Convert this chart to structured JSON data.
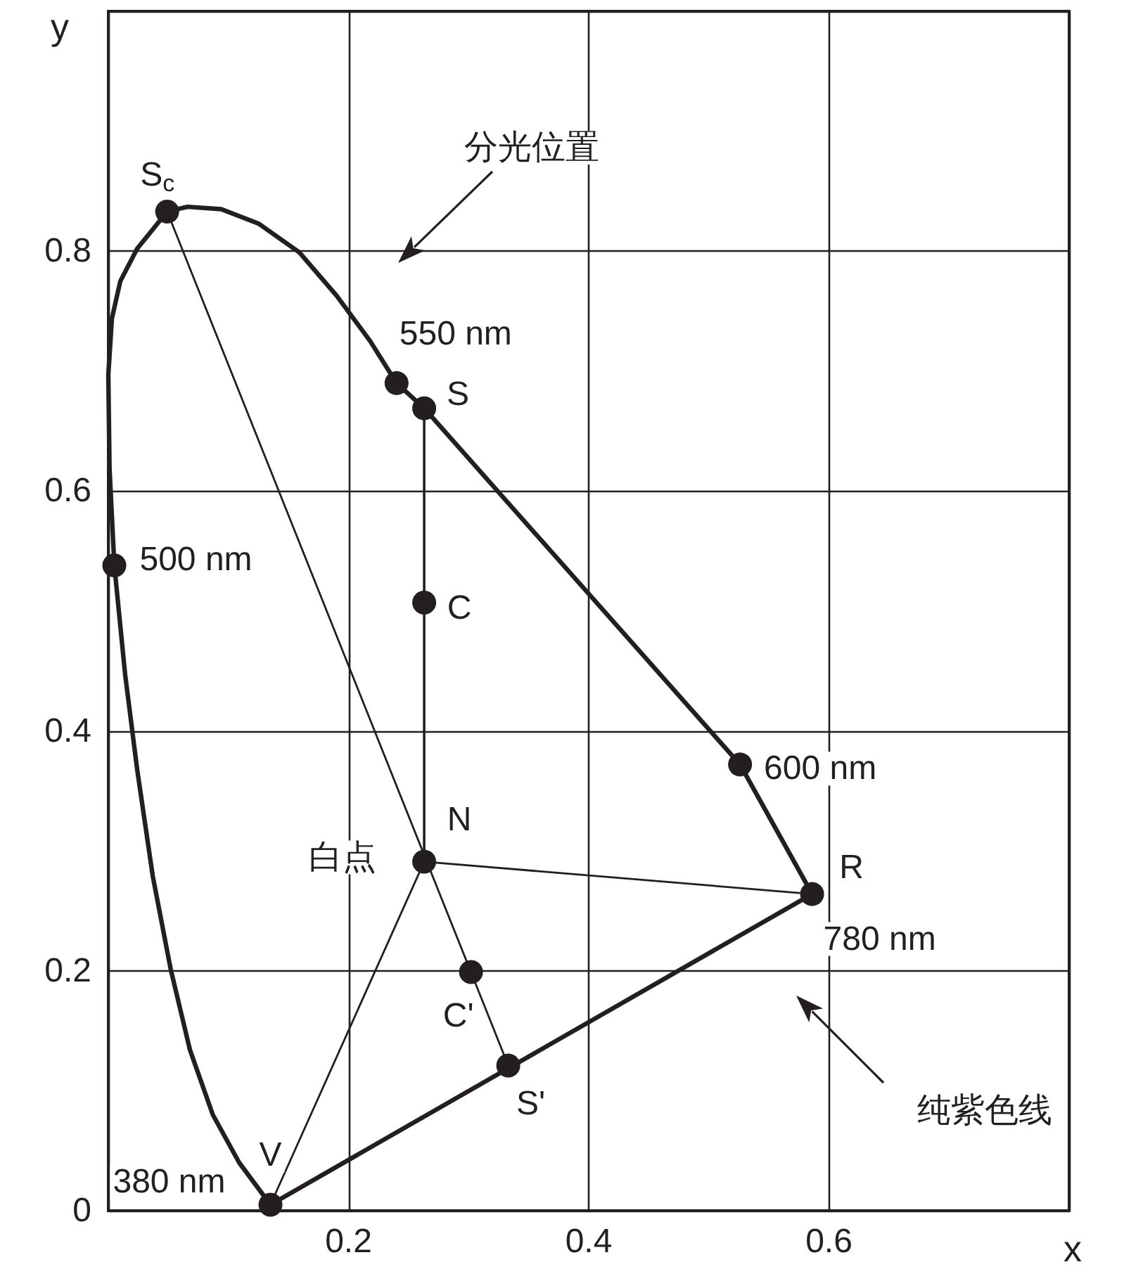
{
  "chart_data": {
    "type": "line",
    "xlabel": "x",
    "ylabel": "y",
    "xlim": [
      0,
      0.8
    ],
    "ylim": [
      0,
      1.0
    ],
    "xticks": [
      0.2,
      0.4,
      0.6
    ],
    "yticks": [
      0,
      0.2,
      0.4,
      0.6,
      0.8
    ],
    "grid": true,
    "line_style": "solid",
    "series": [
      {
        "color": "#231f20",
        "marker": "none",
        "x": [
          0.135,
          0.109,
          0.087,
          0.068,
          0.052,
          0.037,
          0.024,
          0.014,
          0.005,
          0.001,
          0.0,
          0.003,
          0.01,
          0.024,
          0.049,
          0.066,
          0.094,
          0.125,
          0.159,
          0.19,
          0.218,
          0.24,
          0.263,
          0.526,
          0.586
        ],
        "values": [
          0.005,
          0.04,
          0.08,
          0.134,
          0.201,
          0.279,
          0.368,
          0.447,
          0.538,
          0.619,
          0.697,
          0.744,
          0.775,
          0.802,
          0.833,
          0.837,
          0.835,
          0.823,
          0.799,
          0.763,
          0.725,
          0.69,
          0.669,
          0.372,
          0.264
        ]
      },
      {
        "color": "#231f20",
        "marker": "none",
        "x": [
          0.586,
          0.135
        ],
        "values": [
          0.264,
          0.005
        ]
      },
      {
        "color": "#231f20",
        "marker": "none",
        "x": [
          0.049,
          0.333
        ],
        "values": [
          0.833,
          0.121
        ]
      },
      {
        "color": "#231f20",
        "marker": "none",
        "x": [
          0.263,
          0.263
        ],
        "values": [
          0.669,
          0.291
        ]
      },
      {
        "color": "#231f20",
        "marker": "none",
        "x": [
          0.263,
          0.586
        ],
        "values": [
          0.291,
          0.264
        ]
      },
      {
        "color": "#231f20",
        "marker": "none",
        "x": [
          0.263,
          0.135
        ],
        "values": [
          0.291,
          0.005
        ]
      },
      {
        "type": "scatter",
        "color": "#231f20",
        "marker": "circle",
        "x": [
          0.049,
          0.24,
          0.263,
          0.263,
          0.005,
          0.263,
          0.302,
          0.333,
          0.135,
          0.586,
          0.526
        ],
        "values": [
          0.833,
          0.69,
          0.669,
          0.507,
          0.538,
          0.291,
          0.199,
          0.121,
          0.005,
          0.264,
          0.372
        ]
      }
    ],
    "annotations": [
      {
        "text": "S$_{c}$",
        "x": 0.049,
        "y": 0.833
      },
      {
        "text": "550 nm",
        "x": 0.24,
        "y": 0.69
      },
      {
        "text": "S",
        "x": 0.263,
        "y": 0.669
      },
      {
        "text": "C",
        "x": 0.263,
        "y": 0.507
      },
      {
        "text": "500 nm",
        "x": 0.005,
        "y": 0.538
      },
      {
        "text": "N",
        "x": 0.263,
        "y": 0.291
      },
      {
        "text": "白点",
        "x": 0.263,
        "y": 0.291
      },
      {
        "text": "C'",
        "x": 0.302,
        "y": 0.199
      },
      {
        "text": "S'",
        "x": 0.333,
        "y": 0.121
      },
      {
        "text": "V",
        "x": 0.135,
        "y": 0.005
      },
      {
        "text": "R",
        "x": 0.586,
        "y": 0.264
      },
      {
        "text": "780 nm",
        "x": 0.586,
        "y": 0.264
      },
      {
        "text": "600 nm",
        "x": 0.526,
        "y": 0.372
      },
      {
        "text": "380 nm",
        "x": 0.135,
        "y": 0.005
      },
      "分光位置",
      "纯紫色线"
    ]
  }
}
